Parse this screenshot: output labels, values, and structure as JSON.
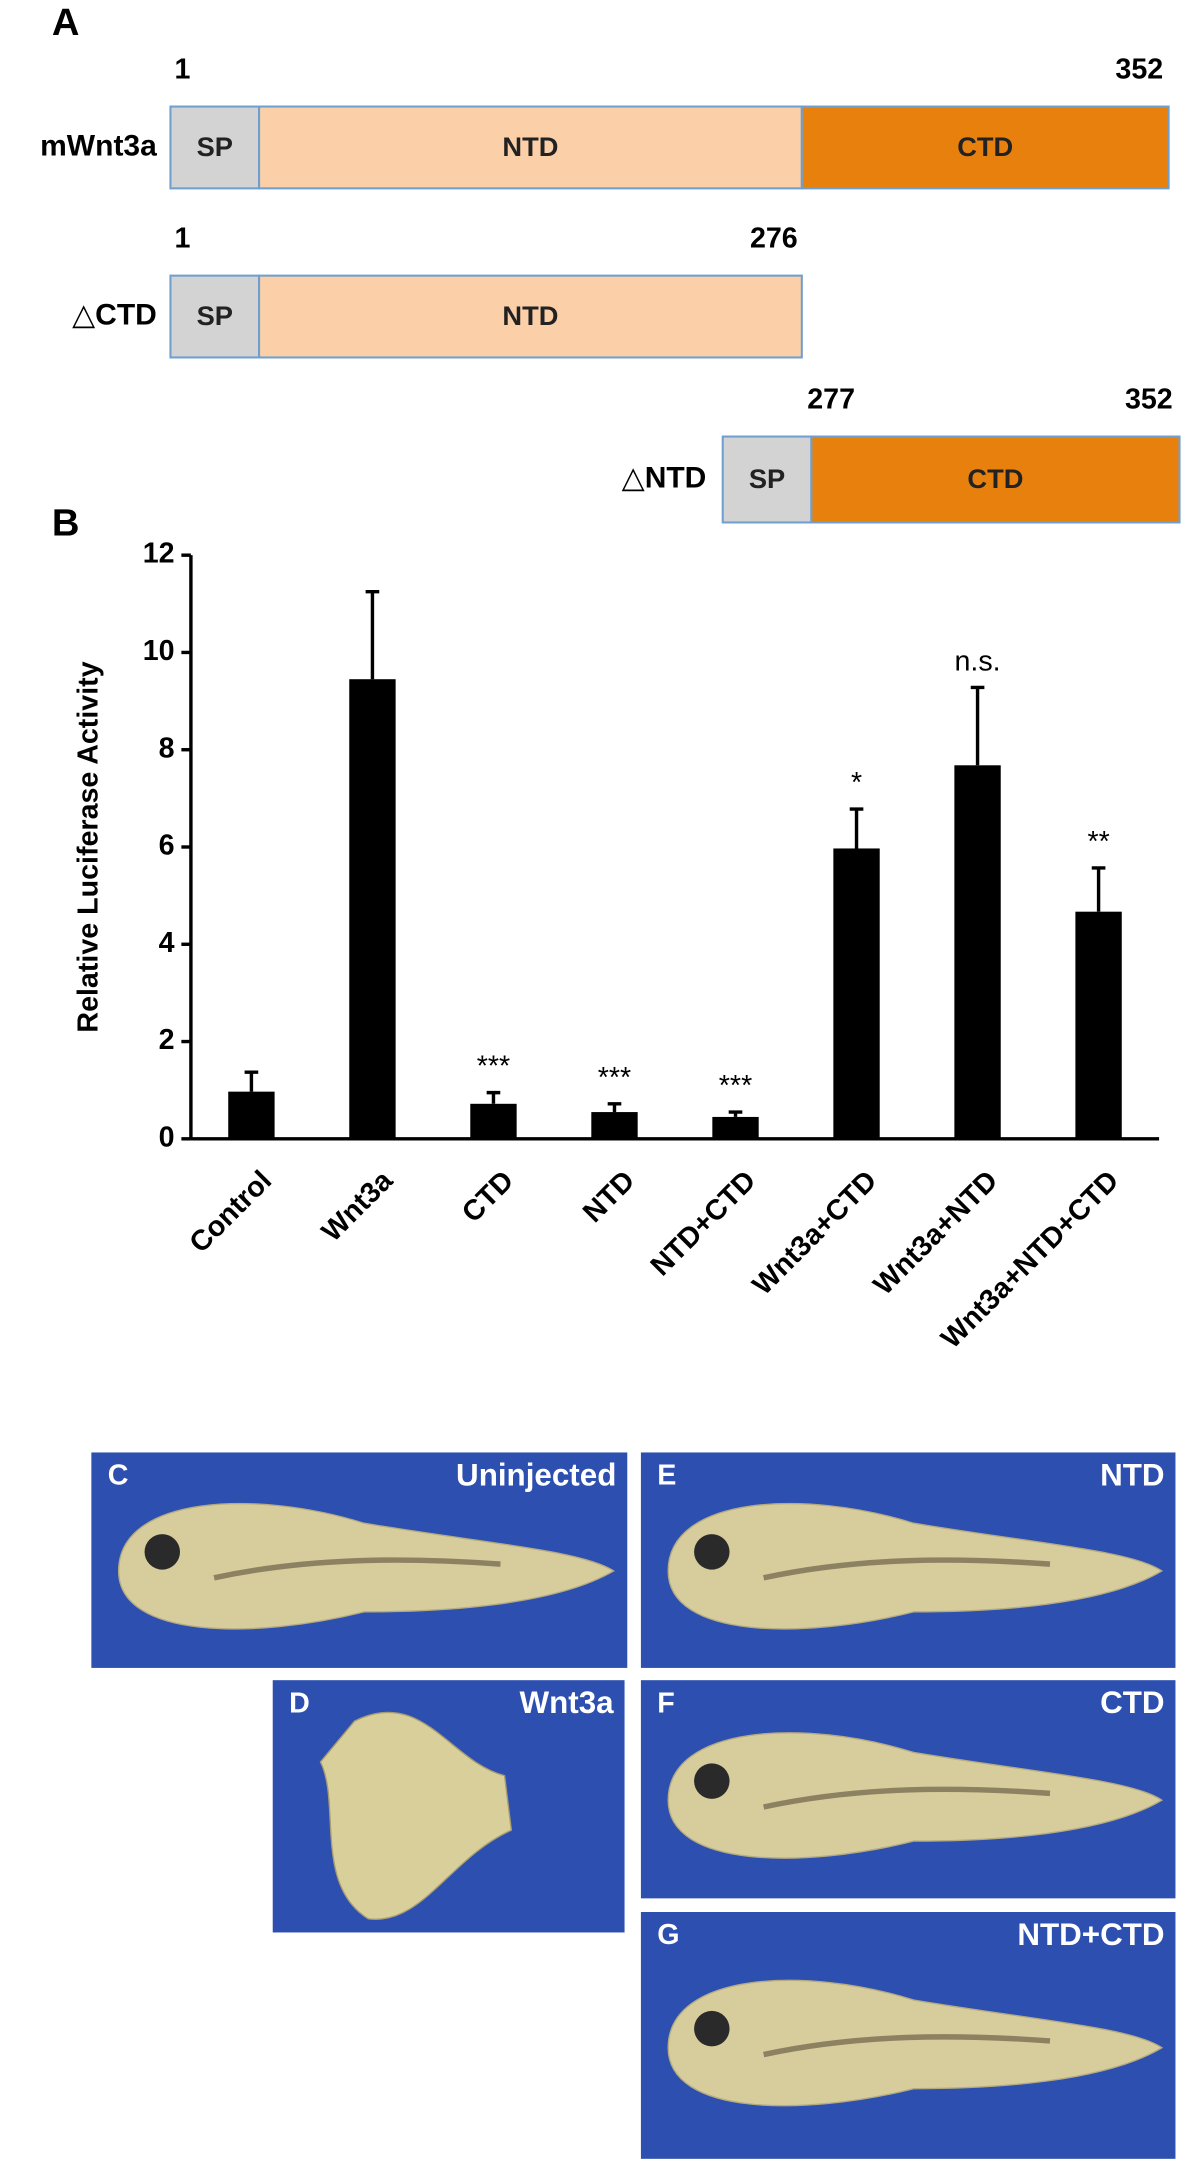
{
  "panel_a": {
    "label": "A",
    "constructs": [
      {
        "name": "mWnt3a",
        "start": 1,
        "end": 352,
        "domains": [
          "SP",
          "NTD",
          "CTD"
        ]
      },
      {
        "name": "△CTD",
        "start": 1,
        "end": 276,
        "domains": [
          "SP",
          "NTD"
        ]
      },
      {
        "name": "△NTD",
        "start": 277,
        "end": 352,
        "domains": [
          "SP",
          "CTD"
        ]
      }
    ]
  },
  "chart_data": {
    "type": "bar",
    "panel_label": "B",
    "y_label": "Relative Luciferase Activity",
    "categories": [
      "Control",
      "Wnt3a",
      "CTD",
      "NTD",
      "NTD+CTD",
      "Wnt3a+CTD",
      "Wnt3a+NTD",
      "Wnt3a+NTD+CTD"
    ],
    "values": [
      0.97,
      9.45,
      0.72,
      0.55,
      0.45,
      5.97,
      7.68,
      4.67
    ],
    "errors": [
      0.4,
      1.8,
      0.23,
      0.17,
      0.1,
      0.81,
      1.6,
      0.9
    ],
    "annotations": [
      null,
      null,
      "***",
      "***",
      "***",
      "*",
      "n.s.",
      "**"
    ],
    "color": "#000000",
    "ylim": [
      0,
      12
    ],
    "yticks": [
      0,
      2,
      4,
      6,
      8,
      10,
      12
    ],
    "grid": false
  },
  "panels": [
    {
      "letter": "C",
      "label": "Uninjected"
    },
    {
      "letter": "D",
      "label": "Wnt3a"
    },
    {
      "letter": "E",
      "label": "NTD"
    },
    {
      "letter": "F",
      "label": "CTD"
    },
    {
      "letter": "G",
      "label": "NTD+CTD"
    }
  ]
}
